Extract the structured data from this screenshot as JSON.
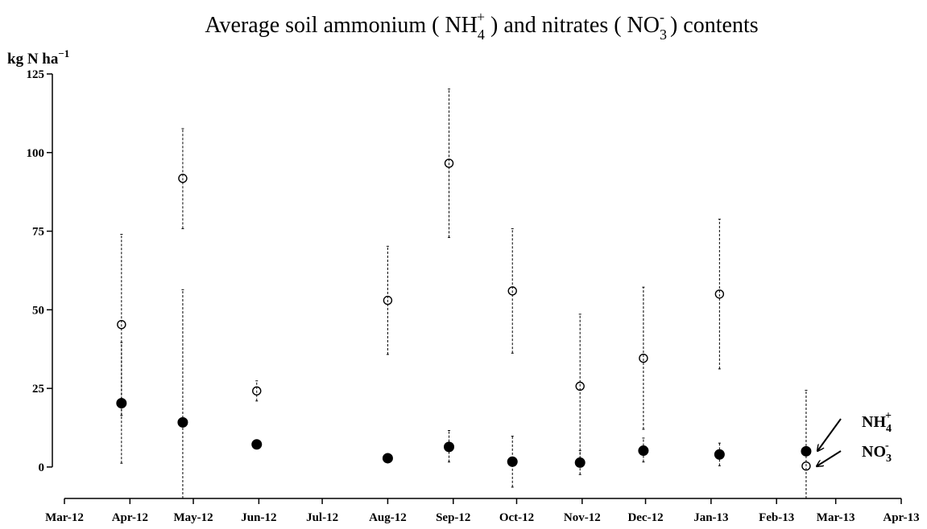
{
  "chart_data": {
    "type": "scatter",
    "title": {
      "prefix": "Average soil ammonium ( NH",
      "nh4_sub": "4",
      "nh4_sup": "+",
      "middle": " ) and nitrates ( NO",
      "no3_sub": "3",
      "no3_sup": "-",
      "suffix": " ) contents"
    },
    "ylabel": {
      "base": "kg N ha",
      "sup": "−1"
    },
    "ylim": [
      -10,
      125
    ],
    "yticks": [
      0,
      25,
      50,
      75,
      100,
      125
    ],
    "x_axis": {
      "range": [
        "2012-03-01",
        "2013-04-01"
      ],
      "tick_dates": [
        "2012-03-01",
        "2012-04-01",
        "2012-05-01",
        "2012-06-01",
        "2012-07-01",
        "2012-08-01",
        "2012-09-01",
        "2012-10-01",
        "2012-11-01",
        "2012-12-01",
        "2013-01-01",
        "2013-02-01",
        "2013-03-01",
        "2013-04-01"
      ],
      "tick_labels": [
        "Mar-12",
        "Apr-12",
        "May-12",
        "Jun-12",
        "Jul-12",
        "Aug-12",
        "Sep-12",
        "Oct-12",
        "Nov-12",
        "Dec-12",
        "Jan-13",
        "Feb-13",
        "Mar-13",
        "Apr-13"
      ]
    },
    "grid": false,
    "series": [
      {
        "marker": "open-circle",
        "points": [
          {
            "date": "2012-03-28",
            "y": 45.3,
            "lo": 1.2,
            "hi": 74.0
          },
          {
            "date": "2012-04-26",
            "y": 91.8,
            "lo": 75.8,
            "hi": 107.6
          },
          {
            "date": "2012-05-31",
            "y": 24.2,
            "lo": 21.0,
            "hi": 27.4
          },
          {
            "date": "2012-08-01",
            "y": 53.0,
            "lo": 35.8,
            "hi": 70.2
          },
          {
            "date": "2012-08-30",
            "y": 96.6,
            "lo": 73.0,
            "hi": 120.2
          },
          {
            "date": "2012-09-29",
            "y": 56.0,
            "lo": 36.2,
            "hi": 75.8
          },
          {
            "date": "2012-10-31",
            "y": 25.7,
            "lo": 2.6,
            "hi": 48.6
          },
          {
            "date": "2012-11-30",
            "y": 34.6,
            "lo": 12.0,
            "hi": 57.2
          },
          {
            "date": "2013-01-05",
            "y": 55.0,
            "lo": 31.2,
            "hi": 78.8
          },
          {
            "date": "2013-02-15",
            "y": 0.3,
            "lo": -10.0,
            "hi": 24.4
          }
        ]
      },
      {
        "marker": "filled-circle",
        "points": [
          {
            "date": "2012-03-28",
            "y": 20.3,
            "lo": 16.4,
            "hi": 39.6
          },
          {
            "date": "2012-04-26",
            "y": 14.2,
            "lo": -10.0,
            "hi": 56.4
          },
          {
            "date": "2012-05-31",
            "y": 7.2,
            "lo": 7.2,
            "hi": 7.2
          },
          {
            "date": "2012-08-01",
            "y": 2.8,
            "lo": 1.6,
            "hi": 4.0
          },
          {
            "date": "2012-08-30",
            "y": 6.4,
            "lo": 1.6,
            "hi": 11.6
          },
          {
            "date": "2012-09-29",
            "y": 1.7,
            "lo": -6.4,
            "hi": 9.8
          },
          {
            "date": "2012-10-31",
            "y": 1.4,
            "lo": -2.4,
            "hi": 5.2
          },
          {
            "date": "2012-11-30",
            "y": 5.2,
            "lo": 1.6,
            "hi": 9.2
          },
          {
            "date": "2013-01-05",
            "y": 4.0,
            "lo": 0.4,
            "hi": 7.6
          },
          {
            "date": "2013-02-15",
            "y": 5.0,
            "lo": 5.0,
            "hi": 5.0
          }
        ]
      }
    ],
    "annotations": [
      {
        "base": "NH",
        "sub": "4",
        "sup": "+",
        "points_to": "filled-circle",
        "date": "2013-02-15"
      },
      {
        "base": "NO",
        "sub": "3",
        "sup": "-",
        "points_to": "open-circle",
        "date": "2013-02-15"
      }
    ]
  }
}
